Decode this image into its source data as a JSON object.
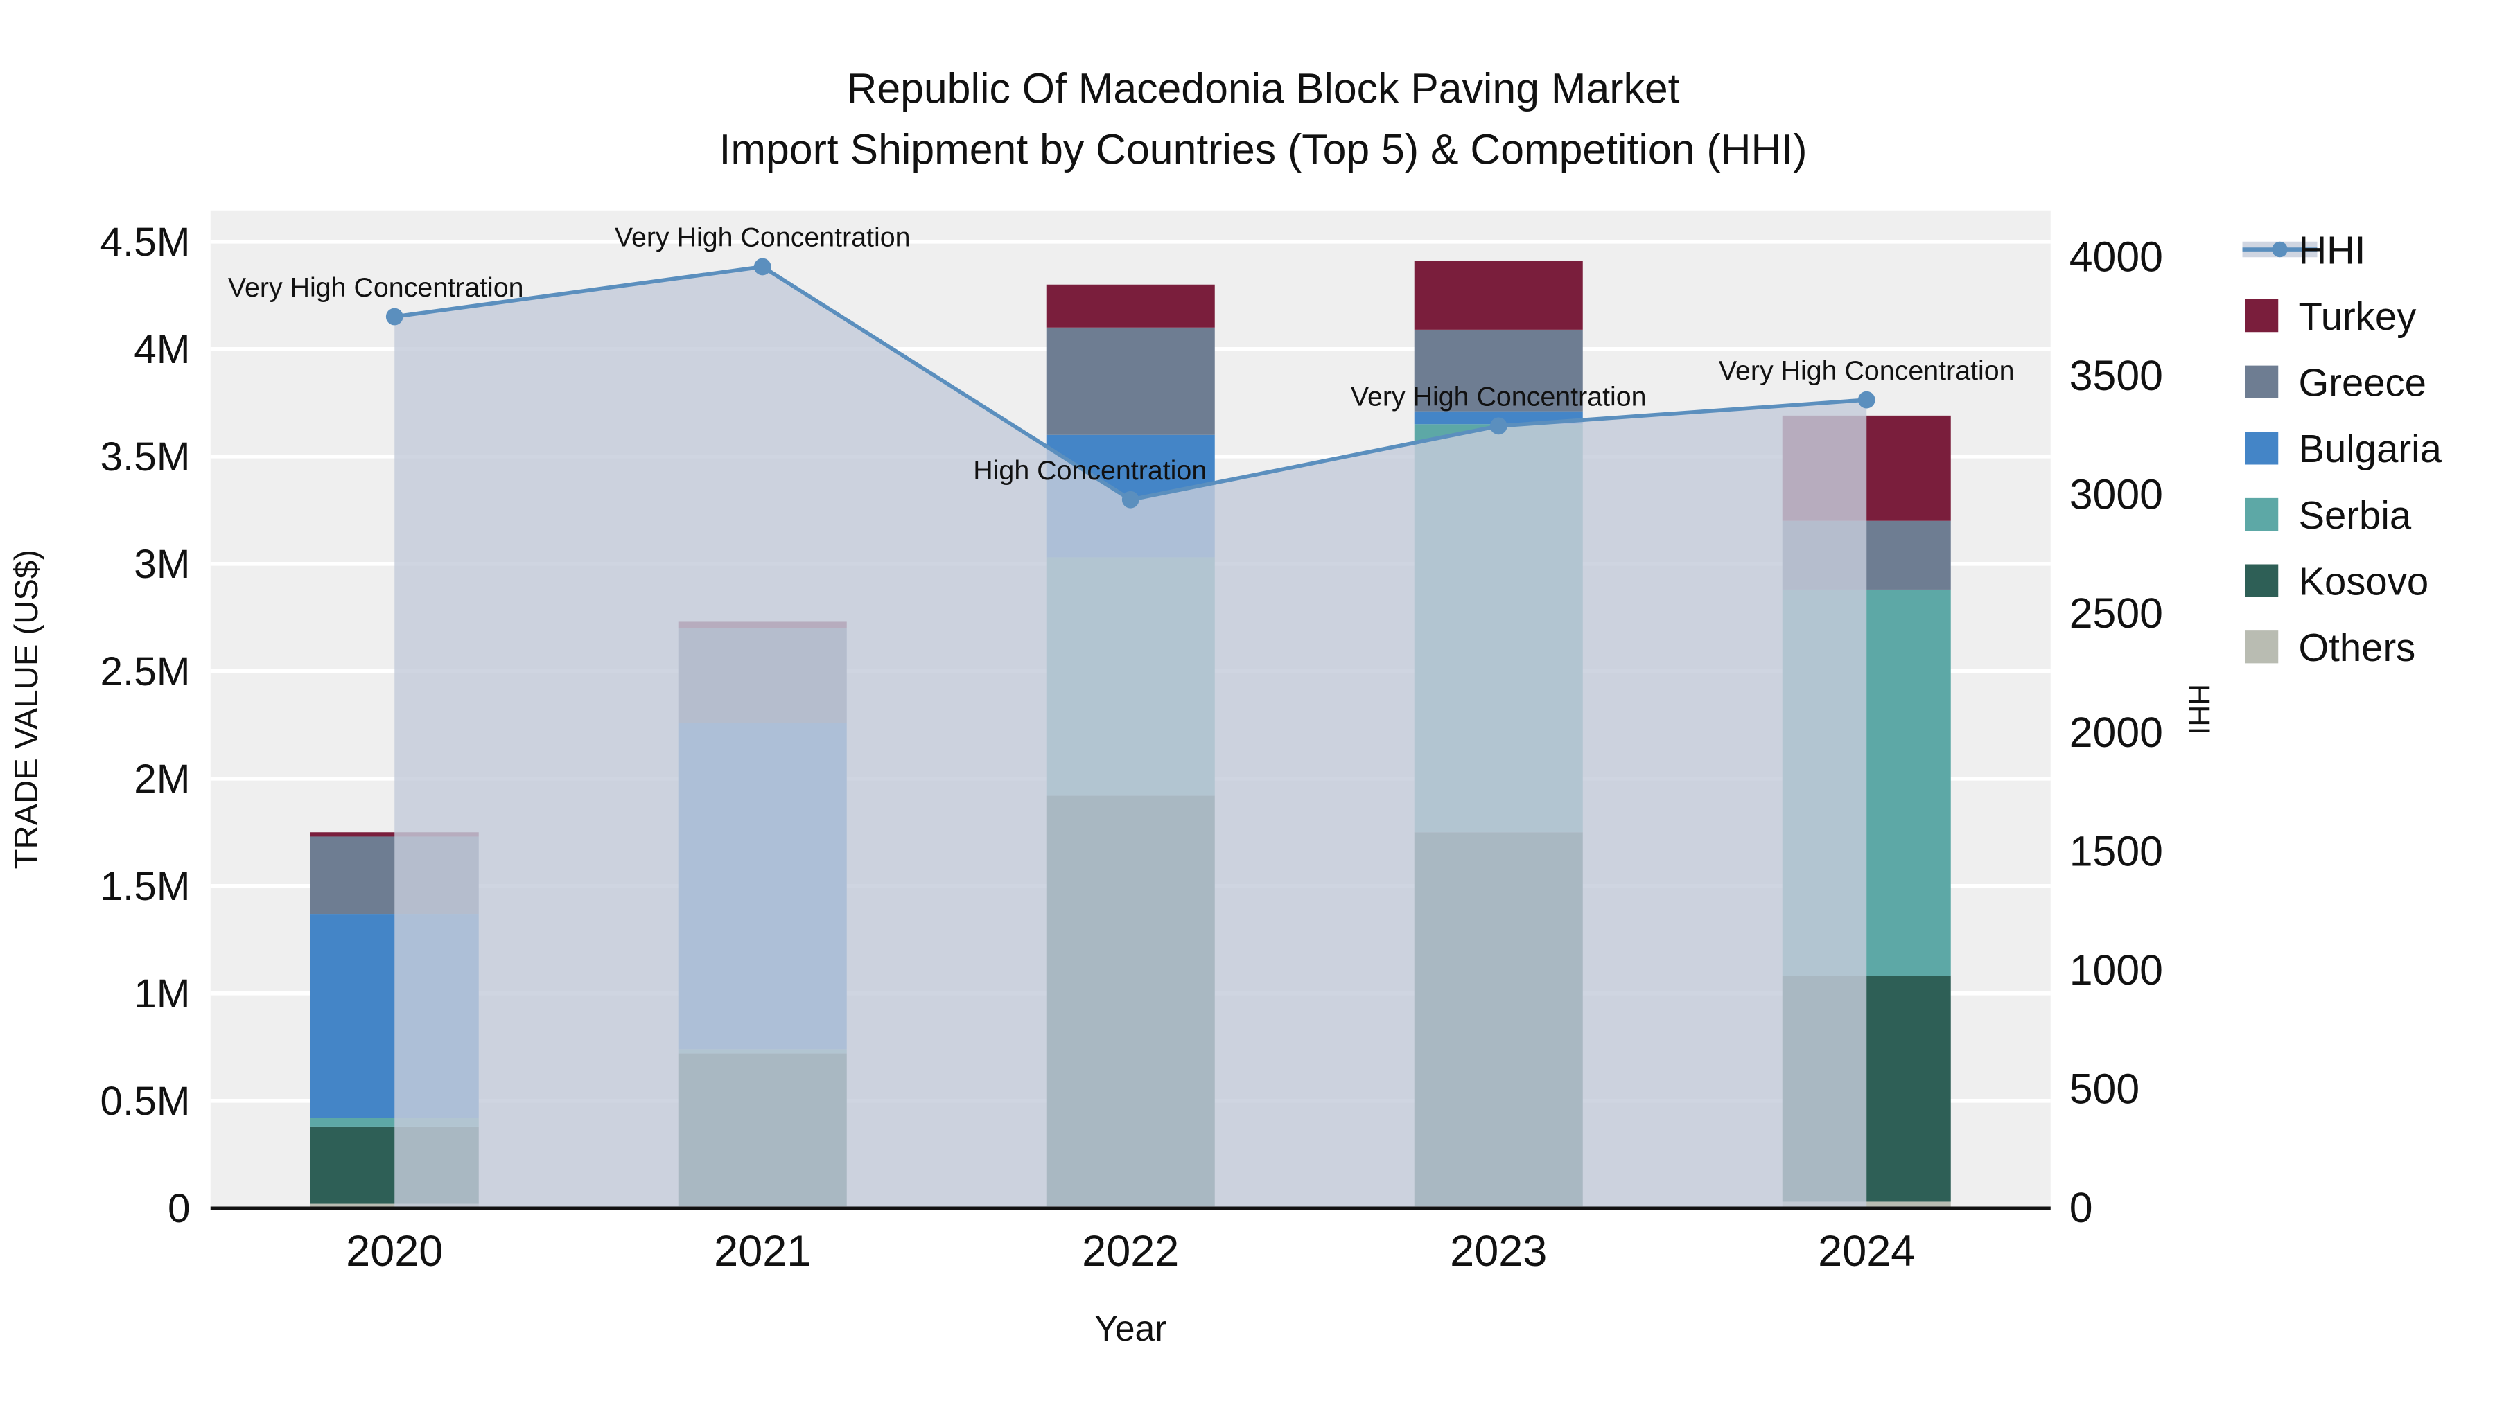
{
  "title_line1": "Republic Of Macedonia Block Paving Market",
  "title_line2": "Import Shipment by Countries (Top 5) & Competition (HHI)",
  "chart_data": {
    "type": "bar+line",
    "categories": [
      "2020",
      "2021",
      "2022",
      "2023",
      "2024"
    ],
    "bar_value_unit": "Million US$",
    "bar_series": [
      {
        "name": "Others",
        "color": "#b9bcb2",
        "values": [
          0.02,
          0.01,
          0.01,
          0.01,
          0.03
        ]
      },
      {
        "name": "Kosovo",
        "color": "#2e5f56",
        "values": [
          0.36,
          0.71,
          1.91,
          1.74,
          1.05
        ]
      },
      {
        "name": "Serbia",
        "color": "#5da8a6",
        "values": [
          0.04,
          0.02,
          1.11,
          1.9,
          1.8
        ]
      },
      {
        "name": "Bulgaria",
        "color": "#4485c7",
        "values": [
          0.95,
          1.52,
          0.57,
          0.06,
          0.0
        ]
      },
      {
        "name": "Greece",
        "color": "#6e7d92",
        "values": [
          0.36,
          0.44,
          0.5,
          0.38,
          0.32
        ]
      },
      {
        "name": "Turkey",
        "color": "#7a1e3c",
        "values": [
          0.02,
          0.03,
          0.2,
          0.32,
          0.49
        ]
      }
    ],
    "line_series": {
      "name": "HHI",
      "color": "#5b8fbe",
      "area_color": "rgba(196,204,218,0.82)",
      "values": [
        3750,
        3960,
        2980,
        3290,
        3400
      ]
    },
    "annotations": [
      "Very High Concentration",
      "Very High Concentration",
      "High Concentration",
      "Very High Concentration",
      "Very High Concentration"
    ],
    "y_left": {
      "label": "TRADE VALUE (US$)",
      "ticks": [
        0,
        0.5,
        1,
        1.5,
        2,
        2.5,
        3,
        3.5,
        4,
        4.5
      ],
      "tick_labels": [
        "0",
        "0.5M",
        "1M",
        "1.5M",
        "2M",
        "2.5M",
        "3M",
        "3.5M",
        "4M",
        "4.5M"
      ]
    },
    "y_right": {
      "label": "HHI",
      "ticks": [
        0,
        500,
        1000,
        1500,
        2000,
        2500,
        3000,
        3500,
        4000
      ]
    },
    "x_label": "Year",
    "legend": [
      {
        "label": "HHI",
        "type": "line",
        "color": "#5b8fbe"
      },
      {
        "label": "Turkey",
        "type": "swatch",
        "color": "#7a1e3c"
      },
      {
        "label": "Greece",
        "type": "swatch",
        "color": "#6e7d92"
      },
      {
        "label": "Bulgaria",
        "type": "swatch",
        "color": "#4485c7"
      },
      {
        "label": "Serbia",
        "type": "swatch",
        "color": "#5da8a6"
      },
      {
        "label": "Kosovo",
        "type": "swatch",
        "color": "#2e5f56"
      },
      {
        "label": "Others",
        "type": "swatch",
        "color": "#b9bcb2"
      }
    ],
    "grid": true,
    "legend_position": "right"
  }
}
